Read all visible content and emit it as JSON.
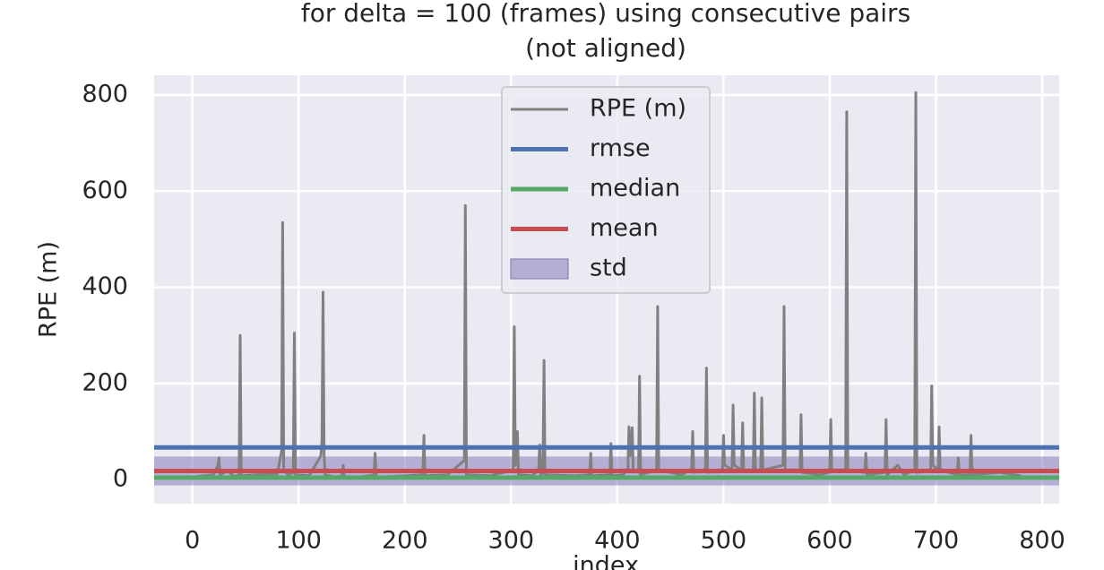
{
  "chart_data": {
    "type": "line",
    "title": [
      "for delta = 100 (frames) using consecutive pairs",
      "(not aligned)"
    ],
    "x_label": "index",
    "y_label": "RPE (m)",
    "xlim": [
      -36,
      816
    ],
    "ylim": [
      -50,
      841
    ],
    "xticks": [
      0,
      100,
      200,
      300,
      400,
      500,
      600,
      700,
      800
    ],
    "yticks": [
      0,
      200,
      400,
      600,
      800
    ],
    "grid": true,
    "legend": "upper center",
    "series": [
      {
        "name": "RPE (m)",
        "color": "#808080",
        "x": [
          0,
          10,
          20,
          24,
          25,
          26,
          33,
          40,
          44,
          45,
          46,
          60,
          80,
          84,
          85,
          86,
          90,
          95,
          96,
          97,
          110,
          121,
          122,
          123,
          124,
          125,
          135,
          141,
          142,
          143,
          160,
          171,
          172,
          173,
          200,
          217,
          218,
          219,
          240,
          256,
          257,
          258,
          280,
          302,
          303,
          304,
          306,
          307,
          320,
          326,
          327,
          328,
          330,
          331,
          332,
          360,
          374,
          375,
          376,
          393,
          394,
          395,
          405,
          410,
          411,
          412,
          414,
          415,
          420,
          421,
          422,
          437,
          438,
          439,
          460,
          470,
          471,
          472,
          483,
          484,
          485,
          499,
          500,
          501,
          508,
          509,
          510,
          517,
          518,
          519,
          528,
          529,
          530,
          535,
          536,
          537,
          556,
          557,
          558,
          572,
          573,
          574,
          590,
          600,
          601,
          602,
          615,
          616,
          617,
          633,
          634,
          635,
          652,
          653,
          654,
          664,
          670,
          680,
          681,
          682,
          695,
          696,
          697,
          702,
          703,
          704,
          720,
          721,
          722,
          732,
          733,
          734,
          760,
          780
        ],
        "values": [
          5,
          8,
          10,
          30,
          45,
          10,
          18,
          6,
          10,
          300,
          8,
          10,
          12,
          60,
          535,
          20,
          10,
          15,
          305,
          10,
          8,
          50,
          80,
          390,
          50,
          10,
          5,
          8,
          30,
          5,
          6,
          10,
          55,
          5,
          8,
          10,
          92,
          8,
          10,
          40,
          570,
          10,
          8,
          20,
          318,
          30,
          100,
          10,
          8,
          20,
          72,
          10,
          15,
          248,
          10,
          8,
          10,
          55,
          8,
          10,
          75,
          8,
          10,
          20,
          110,
          50,
          108,
          20,
          15,
          215,
          10,
          20,
          360,
          20,
          10,
          20,
          100,
          15,
          20,
          232,
          15,
          20,
          92,
          30,
          20,
          155,
          30,
          20,
          118,
          20,
          20,
          180,
          20,
          20,
          170,
          20,
          30,
          360,
          20,
          20,
          135,
          15,
          10,
          15,
          125,
          20,
          20,
          765,
          20,
          15,
          55,
          10,
          15,
          125,
          10,
          30,
          10,
          20,
          805,
          15,
          20,
          195,
          30,
          20,
          110,
          20,
          10,
          45,
          10,
          10,
          92,
          10,
          15,
          8
        ]
      }
    ],
    "stats": [
      {
        "name": "rmse",
        "color": "#4c72b0",
        "value": 67
      },
      {
        "name": "median",
        "color": "#55a868",
        "value": 4
      },
      {
        "name": "mean",
        "color": "#c44e52",
        "value": 18
      }
    ],
    "std": {
      "name": "std",
      "color": "#8172b2",
      "value": 30
    }
  }
}
